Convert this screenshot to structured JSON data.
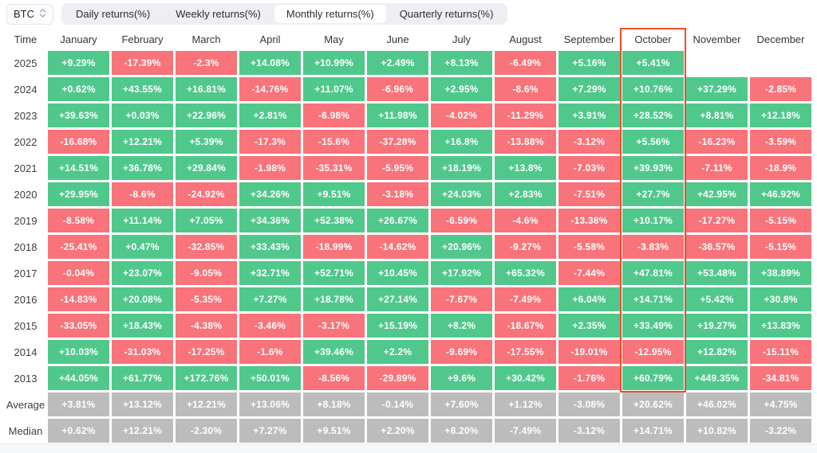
{
  "controls": {
    "symbol": "BTC",
    "tabs": [
      {
        "label": "Daily returns(%)",
        "active": false
      },
      {
        "label": "Weekly returns(%)",
        "active": false
      },
      {
        "label": "Monthly returns(%)",
        "active": true
      },
      {
        "label": "Quarterly returns(%)",
        "active": false
      }
    ]
  },
  "table": {
    "columns": [
      "Time",
      "January",
      "February",
      "March",
      "April",
      "May",
      "June",
      "July",
      "August",
      "September",
      "October",
      "November",
      "December"
    ],
    "highlighted_column": "October",
    "highlight_last_row": "2013",
    "rows": [
      {
        "label": "2025",
        "summary": false,
        "values": [
          "+9.29%",
          "-17.39%",
          "-2.3%",
          "+14.08%",
          "+10.99%",
          "+2.49%",
          "+8.13%",
          "-6.49%",
          "+5.16%",
          "+5.41%",
          "",
          ""
        ]
      },
      {
        "label": "2024",
        "summary": false,
        "values": [
          "+0.62%",
          "+43.55%",
          "+16.81%",
          "-14.76%",
          "+11.07%",
          "-6.96%",
          "+2.95%",
          "-8.6%",
          "+7.29%",
          "+10.76%",
          "+37.29%",
          "-2.85%"
        ]
      },
      {
        "label": "2023",
        "summary": false,
        "values": [
          "+39.63%",
          "+0.03%",
          "+22.96%",
          "+2.81%",
          "-6.98%",
          "+11.98%",
          "-4.02%",
          "-11.29%",
          "+3.91%",
          "+28.52%",
          "+8.81%",
          "+12.18%"
        ]
      },
      {
        "label": "2022",
        "summary": false,
        "values": [
          "-16.68%",
          "+12.21%",
          "+5.39%",
          "-17.3%",
          "-15.6%",
          "-37.28%",
          "+16.8%",
          "-13.88%",
          "-3.12%",
          "+5.56%",
          "-16.23%",
          "-3.59%"
        ]
      },
      {
        "label": "2021",
        "summary": false,
        "values": [
          "+14.51%",
          "+36.78%",
          "+29.84%",
          "-1.98%",
          "-35.31%",
          "-5.95%",
          "+18.19%",
          "+13.8%",
          "-7.03%",
          "+39.93%",
          "-7.11%",
          "-18.9%"
        ]
      },
      {
        "label": "2020",
        "summary": false,
        "values": [
          "+29.95%",
          "-8.6%",
          "-24.92%",
          "+34.26%",
          "+9.51%",
          "-3.18%",
          "+24.03%",
          "+2.83%",
          "-7.51%",
          "+27.7%",
          "+42.95%",
          "+46.92%"
        ]
      },
      {
        "label": "2019",
        "summary": false,
        "values": [
          "-8.58%",
          "+11.14%",
          "+7.05%",
          "+34.36%",
          "+52.38%",
          "+26.67%",
          "-6.59%",
          "-4.6%",
          "-13.38%",
          "+10.17%",
          "-17.27%",
          "-5.15%"
        ]
      },
      {
        "label": "2018",
        "summary": false,
        "values": [
          "-25.41%",
          "+0.47%",
          "-32.85%",
          "+33.43%",
          "-18.99%",
          "-14.62%",
          "+20.96%",
          "-9.27%",
          "-5.58%",
          "-3.83%",
          "-36.57%",
          "-5.15%"
        ]
      },
      {
        "label": "2017",
        "summary": false,
        "values": [
          "-0.04%",
          "+23.07%",
          "-9.05%",
          "+32.71%",
          "+52.71%",
          "+10.45%",
          "+17.92%",
          "+65.32%",
          "-7.44%",
          "+47.81%",
          "+53.48%",
          "+38.89%"
        ]
      },
      {
        "label": "2016",
        "summary": false,
        "values": [
          "-14.83%",
          "+20.08%",
          "-5.35%",
          "+7.27%",
          "+18.78%",
          "+27.14%",
          "-7.67%",
          "-7.49%",
          "+6.04%",
          "+14.71%",
          "+5.42%",
          "+30.8%"
        ]
      },
      {
        "label": "2015",
        "summary": false,
        "values": [
          "-33.05%",
          "+18.43%",
          "-4.38%",
          "-3.46%",
          "-3.17%",
          "+15.19%",
          "+8.2%",
          "-18.67%",
          "+2.35%",
          "+33.49%",
          "+19.27%",
          "+13.83%"
        ]
      },
      {
        "label": "2014",
        "summary": false,
        "values": [
          "+10.03%",
          "-31.03%",
          "-17.25%",
          "-1.6%",
          "+39.46%",
          "+2.2%",
          "-9.69%",
          "-17.55%",
          "-19.01%",
          "-12.95%",
          "+12.82%",
          "-15.11%"
        ]
      },
      {
        "label": "2013",
        "summary": false,
        "values": [
          "+44.05%",
          "+61.77%",
          "+172.76%",
          "+50.01%",
          "-8.56%",
          "-29.89%",
          "+9.6%",
          "+30.42%",
          "-1.76%",
          "+60.79%",
          "+449.35%",
          "-34.81%"
        ]
      },
      {
        "label": "Average",
        "summary": true,
        "values": [
          "+3.81%",
          "+13.12%",
          "+12.21%",
          "+13.06%",
          "+8.18%",
          "-0.14%",
          "+7.60%",
          "+1.12%",
          "-3.08%",
          "+20.62%",
          "+46.02%",
          "+4.75%"
        ]
      },
      {
        "label": "Median",
        "summary": true,
        "values": [
          "+0.62%",
          "+12.21%",
          "-2.30%",
          "+7.27%",
          "+9.51%",
          "+2.20%",
          "+8.20%",
          "-7.49%",
          "-3.12%",
          "+14.71%",
          "+10.82%",
          "-3.22%"
        ]
      }
    ]
  },
  "colors": {
    "positive": "#50c88c",
    "negative": "#f8737a",
    "neutral": "#bcbcbc",
    "highlight_border": "#f04b26"
  }
}
